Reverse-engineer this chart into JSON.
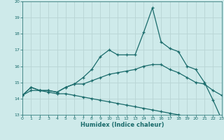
{
  "xlabel": "Humidex (Indice chaleur)",
  "bg_color": "#ceeaea",
  "grid_color": "#b8d4d4",
  "line_color": "#1a6b6b",
  "xlim": [
    0,
    23
  ],
  "ylim": [
    13,
    20
  ],
  "xticks": [
    0,
    1,
    2,
    3,
    4,
    5,
    6,
    7,
    8,
    9,
    10,
    11,
    12,
    13,
    14,
    15,
    16,
    17,
    18,
    19,
    20,
    21,
    22,
    23
  ],
  "yticks": [
    13,
    14,
    15,
    16,
    17,
    18,
    19,
    20
  ],
  "line1_x": [
    0,
    1,
    2,
    3,
    4,
    5,
    6,
    7,
    8,
    9,
    10,
    11,
    12,
    13,
    14,
    15,
    16,
    17,
    18,
    19,
    20,
    21,
    22,
    23
  ],
  "line1_y": [
    14.2,
    14.7,
    14.5,
    14.5,
    14.4,
    14.7,
    14.9,
    15.3,
    15.8,
    16.6,
    17.0,
    16.7,
    16.7,
    16.7,
    18.1,
    19.6,
    17.5,
    17.1,
    16.9,
    16.0,
    15.8,
    15.0,
    13.9,
    12.7
  ],
  "line2_x": [
    0,
    1,
    2,
    3,
    4,
    5,
    6,
    7,
    8,
    9,
    10,
    11,
    12,
    13,
    14,
    15,
    16,
    17,
    18,
    19,
    20,
    21,
    22,
    23
  ],
  "line2_y": [
    14.2,
    14.7,
    14.5,
    14.5,
    14.4,
    14.7,
    14.9,
    14.9,
    15.1,
    15.3,
    15.5,
    15.6,
    15.7,
    15.8,
    16.0,
    16.1,
    16.1,
    15.8,
    15.6,
    15.3,
    15.0,
    14.9,
    14.5,
    14.2
  ],
  "line3_x": [
    0,
    1,
    2,
    3,
    4,
    5,
    6,
    7,
    8,
    9,
    10,
    11,
    12,
    13,
    14,
    15,
    16,
    17,
    18,
    19,
    20,
    21,
    22,
    23
  ],
  "line3_y": [
    14.2,
    14.5,
    14.5,
    14.4,
    14.3,
    14.3,
    14.2,
    14.1,
    14.0,
    13.9,
    13.8,
    13.7,
    13.6,
    13.5,
    13.4,
    13.3,
    13.2,
    13.1,
    13.0,
    12.9,
    12.8,
    12.75,
    12.7,
    12.65
  ]
}
